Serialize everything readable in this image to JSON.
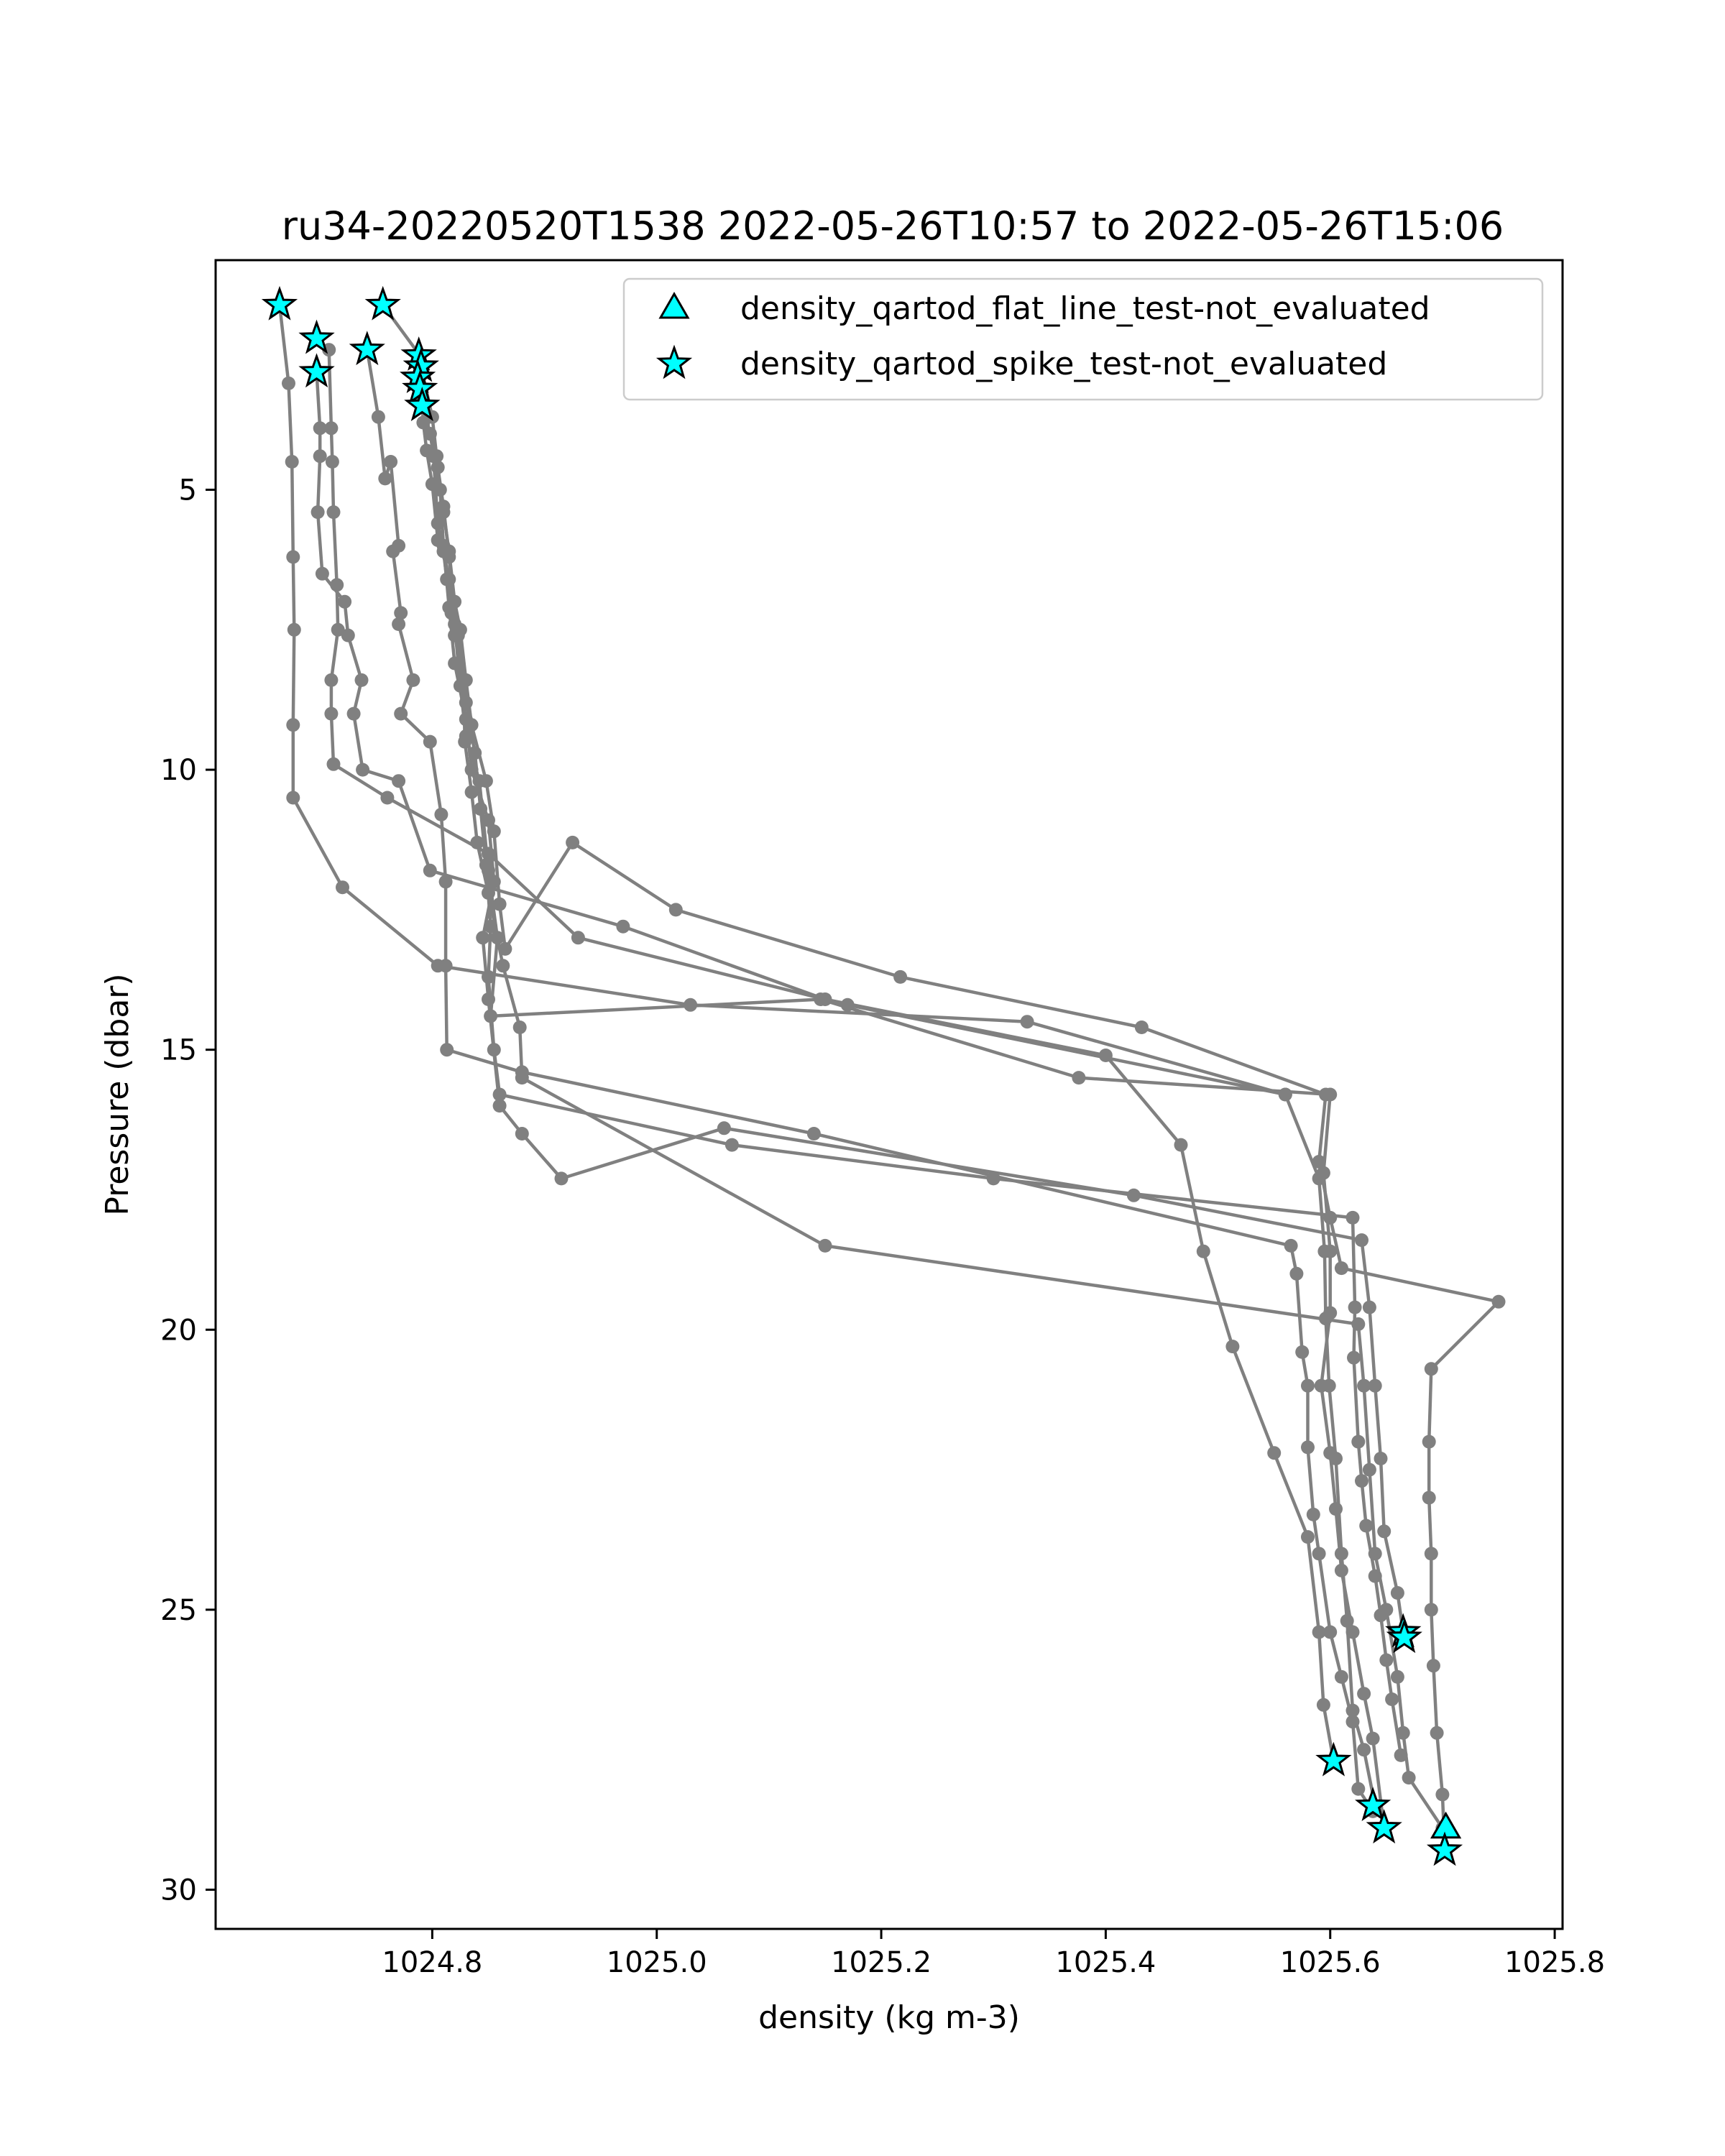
{
  "chart_data": {
    "type": "scatter",
    "title": "ru34-20220520T1538 2022-05-26T10:57 to 2022-05-26T15:06",
    "xlabel": "density (kg m-3)",
    "ylabel": "Pressure (dbar)",
    "xlim": [
      1024.607,
      1025.807
    ],
    "ylim": [
      30.7,
      0.9
    ],
    "y_inverted": true,
    "x_ticks": [
      1024.8,
      1025.0,
      1025.2,
      1025.4,
      1025.6,
      1025.8
    ],
    "x_tick_labels": [
      "1024.8",
      "1025.0",
      "1025.2",
      "1025.4",
      "1025.6",
      "1025.8"
    ],
    "y_ticks": [
      5,
      10,
      15,
      20,
      25,
      30
    ],
    "y_tick_labels": [
      "5",
      "10",
      "15",
      "20",
      "25",
      "30"
    ],
    "grid": false,
    "legend": {
      "placement": "top-right",
      "entries": [
        {
          "label": "density_qartod_flat_line_test-not_evaluated",
          "marker": "triangle",
          "color": "#00ffff"
        },
        {
          "label": "density_qartod_spike_test-not_evaluated",
          "marker": "star",
          "color": "#00ffff"
        }
      ]
    },
    "colors": {
      "profile_line": "#808080",
      "flag_marker_fill": "#00ffff",
      "flag_marker_edge": "#000000"
    },
    "profiles": [
      {
        "points": [
          [
            1024.664,
            1.7
          ],
          [
            1024.672,
            3.1
          ],
          [
            1024.675,
            4.5
          ],
          [
            1024.676,
            6.2
          ],
          [
            1024.677,
            7.5
          ],
          [
            1024.676,
            9.2
          ],
          [
            1024.676,
            10.5
          ],
          [
            1024.72,
            12.1
          ],
          [
            1024.805,
            13.5
          ],
          [
            1025.03,
            14.2
          ],
          [
            1025.33,
            14.5
          ],
          [
            1025.56,
            15.8
          ]
        ]
      },
      {
        "points": [
          [
            1024.697,
            2.3
          ],
          [
            1024.708,
            2.5
          ],
          [
            1024.71,
            3.9
          ],
          [
            1024.711,
            4.5
          ],
          [
            1024.712,
            5.4
          ],
          [
            1024.715,
            6.7
          ],
          [
            1024.716,
            7.5
          ],
          [
            1024.71,
            8.4
          ],
          [
            1024.71,
            9.0
          ],
          [
            1024.712,
            9.9
          ],
          [
            1024.76,
            10.5
          ],
          [
            1024.85,
            11.5
          ],
          [
            1024.93,
            13.0
          ],
          [
            1025.17,
            14.2
          ],
          [
            1025.56,
            15.8
          ],
          [
            1025.59,
            17.3
          ],
          [
            1025.595,
            18.6
          ],
          [
            1025.596,
            19.8
          ],
          [
            1025.599,
            21.0
          ],
          [
            1025.605,
            22.3
          ],
          [
            1025.61,
            24.0
          ],
          [
            1025.615,
            25.2
          ],
          [
            1025.62,
            26.8
          ],
          [
            1025.63,
            27.5
          ],
          [
            1025.64,
            28.5
          ]
        ]
      },
      {
        "points": [
          [
            1024.697,
            2.9
          ],
          [
            1024.7,
            3.9
          ],
          [
            1024.7,
            4.4
          ],
          [
            1024.698,
            5.4
          ],
          [
            1024.702,
            6.5
          ],
          [
            1024.722,
            7.0
          ],
          [
            1024.725,
            7.6
          ],
          [
            1024.737,
            8.4
          ],
          [
            1024.73,
            9.0
          ],
          [
            1024.738,
            10.0
          ],
          [
            1024.77,
            10.2
          ],
          [
            1024.798,
            11.8
          ],
          [
            1024.97,
            12.8
          ],
          [
            1025.15,
            14.1
          ],
          [
            1025.4,
            15.1
          ],
          [
            1025.467,
            16.7
          ],
          [
            1025.487,
            18.6
          ],
          [
            1025.513,
            20.3
          ],
          [
            1025.55,
            22.2
          ],
          [
            1025.58,
            23.7
          ],
          [
            1025.59,
            25.4
          ],
          [
            1025.594,
            26.7
          ],
          [
            1025.603,
            27.7
          ]
        ]
      },
      {
        "points": [
          [
            1024.742,
            2.5
          ],
          [
            1024.752,
            3.7
          ],
          [
            1024.758,
            4.8
          ],
          [
            1024.763,
            4.5
          ],
          [
            1024.77,
            6.0
          ],
          [
            1024.765,
            6.1
          ],
          [
            1024.772,
            7.2
          ],
          [
            1024.77,
            7.4
          ],
          [
            1024.783,
            8.4
          ],
          [
            1024.772,
            9.0
          ],
          [
            1024.798,
            9.5
          ],
          [
            1024.808,
            10.8
          ],
          [
            1024.812,
            12.0
          ],
          [
            1024.812,
            13.5
          ],
          [
            1024.813,
            15.0
          ],
          [
            1024.88,
            15.4
          ],
          [
            1025.14,
            16.5
          ],
          [
            1025.565,
            18.5
          ],
          [
            1025.57,
            19.0
          ],
          [
            1025.575,
            20.4
          ],
          [
            1025.58,
            21.0
          ],
          [
            1025.58,
            22.1
          ],
          [
            1025.585,
            23.3
          ],
          [
            1025.59,
            24.0
          ],
          [
            1025.6,
            25.4
          ],
          [
            1025.61,
            26.2
          ],
          [
            1025.62,
            27.0
          ],
          [
            1025.625,
            28.2
          ],
          [
            1025.638,
            28.6
          ]
        ]
      },
      {
        "points": [
          [
            1024.756,
            1.7
          ],
          [
            1024.789,
            2.6
          ],
          [
            1024.792,
            3.8
          ],
          [
            1024.795,
            4.3
          ],
          [
            1024.8,
            4.9
          ],
          [
            1024.805,
            5.9
          ],
          [
            1024.81,
            6.1
          ],
          [
            1024.813,
            6.6
          ],
          [
            1024.817,
            7.2
          ],
          [
            1024.82,
            7.6
          ],
          [
            1024.828,
            8.4
          ],
          [
            1024.829,
            9.5
          ],
          [
            1024.835,
            10.4
          ],
          [
            1024.84,
            11.3
          ],
          [
            1024.85,
            12.2
          ],
          [
            1024.863,
            13.5
          ],
          [
            1024.878,
            14.6
          ],
          [
            1024.88,
            15.5
          ],
          [
            1025.15,
            18.5
          ],
          [
            1025.625,
            19.9
          ],
          [
            1025.63,
            21.0
          ],
          [
            1025.635,
            22.5
          ],
          [
            1025.64,
            24.0
          ],
          [
            1025.65,
            25.0
          ],
          [
            1025.66,
            26.2
          ],
          [
            1025.665,
            27.2
          ],
          [
            1025.67,
            28.0
          ],
          [
            1025.7,
            28.9
          ]
        ]
      },
      {
        "points": [
          [
            1024.788,
            2.7
          ],
          [
            1024.79,
            3.3
          ],
          [
            1024.798,
            4.0
          ],
          [
            1024.804,
            4.4
          ],
          [
            1024.807,
            5.0
          ],
          [
            1024.81,
            6.0
          ],
          [
            1024.815,
            7.1
          ],
          [
            1024.82,
            8.1
          ],
          [
            1024.83,
            9.1
          ],
          [
            1024.835,
            10.0
          ],
          [
            1024.85,
            10.9
          ],
          [
            1024.855,
            12.0
          ],
          [
            1024.845,
            13.0
          ],
          [
            1024.85,
            14.1
          ],
          [
            1024.86,
            16.0
          ],
          [
            1024.88,
            16.5
          ],
          [
            1024.915,
            17.3
          ],
          [
            1025.06,
            16.4
          ],
          [
            1025.425,
            17.6
          ],
          [
            1025.628,
            18.4
          ],
          [
            1025.635,
            19.6
          ],
          [
            1025.64,
            21.0
          ],
          [
            1025.645,
            22.3
          ],
          [
            1025.648,
            23.6
          ],
          [
            1025.66,
            24.7
          ],
          [
            1025.665,
            25.4
          ]
        ]
      },
      {
        "points": [
          [
            1024.79,
            2.8
          ],
          [
            1024.8,
            3.7
          ],
          [
            1024.805,
            4.6
          ],
          [
            1024.81,
            5.3
          ],
          [
            1024.815,
            6.2
          ],
          [
            1024.82,
            7.4
          ],
          [
            1024.825,
            8.5
          ],
          [
            1024.83,
            9.4
          ],
          [
            1024.842,
            10.2
          ],
          [
            1024.85,
            11.8
          ],
          [
            1024.858,
            13.0
          ],
          [
            1024.852,
            14.4
          ],
          [
            1025.146,
            14.1
          ],
          [
            1025.376,
            15.5
          ],
          [
            1025.6,
            15.8
          ],
          [
            1025.594,
            17.2
          ],
          [
            1025.6,
            18.6
          ],
          [
            1025.6,
            19.7
          ],
          [
            1025.592,
            21.0
          ],
          [
            1025.6,
            22.2
          ],
          [
            1025.605,
            23.2
          ],
          [
            1025.61,
            24.3
          ],
          [
            1025.62,
            25.4
          ],
          [
            1025.63,
            26.5
          ],
          [
            1025.638,
            27.3
          ],
          [
            1025.648,
            28.9
          ]
        ]
      },
      {
        "points": [
          [
            1024.791,
            3.5
          ],
          [
            1024.798,
            4.0
          ],
          [
            1024.81,
            5.4
          ],
          [
            1024.815,
            6.1
          ],
          [
            1024.82,
            7.0
          ],
          [
            1024.825,
            7.5
          ],
          [
            1024.83,
            8.4
          ],
          [
            1024.835,
            9.2
          ],
          [
            1024.848,
            10.2
          ],
          [
            1024.855,
            11.1
          ],
          [
            1024.86,
            12.4
          ],
          [
            1024.865,
            13.2
          ],
          [
            1024.925,
            11.3
          ],
          [
            1025.017,
            12.5
          ],
          [
            1025.217,
            13.7
          ],
          [
            1025.432,
            14.6
          ],
          [
            1025.596,
            15.8
          ],
          [
            1025.59,
            17.0
          ],
          [
            1025.6,
            18.0
          ],
          [
            1025.61,
            18.9
          ],
          [
            1025.75,
            19.5
          ],
          [
            1025.69,
            20.7
          ],
          [
            1025.688,
            22.0
          ],
          [
            1025.688,
            23.0
          ],
          [
            1025.69,
            24.0
          ],
          [
            1025.69,
            25.0
          ],
          [
            1025.692,
            26.0
          ],
          [
            1025.695,
            27.2
          ],
          [
            1025.7,
            28.3
          ],
          [
            1025.702,
            29.3
          ]
        ]
      },
      {
        "points": [
          [
            1024.801,
            4.4
          ],
          [
            1024.805,
            5.6
          ],
          [
            1024.815,
            6.6
          ],
          [
            1024.823,
            7.6
          ],
          [
            1024.83,
            8.8
          ],
          [
            1024.838,
            9.7
          ],
          [
            1024.843,
            10.7
          ],
          [
            1024.848,
            11.7
          ],
          [
            1024.852,
            12.8
          ],
          [
            1024.85,
            13.7
          ],
          [
            1024.855,
            15.0
          ],
          [
            1024.86,
            15.8
          ],
          [
            1025.067,
            16.7
          ],
          [
            1025.3,
            17.3
          ],
          [
            1025.62,
            18.0
          ],
          [
            1025.622,
            19.6
          ],
          [
            1025.621,
            20.5
          ],
          [
            1025.625,
            22.0
          ],
          [
            1025.628,
            22.7
          ],
          [
            1025.632,
            23.5
          ],
          [
            1025.64,
            24.4
          ],
          [
            1025.645,
            25.1
          ],
          [
            1025.65,
            25.9
          ],
          [
            1025.655,
            26.6
          ],
          [
            1025.663,
            27.6
          ]
        ]
      }
    ],
    "series": [
      {
        "name": "density_qartod_flat_line_test-not_evaluated",
        "marker": "triangle",
        "x": [
          1025.703
        ],
        "y": [
          28.9
        ]
      },
      {
        "name": "density_qartod_spike_test-not_evaluated",
        "marker": "star",
        "x": [
          1024.664,
          1024.756,
          1024.697,
          1024.742,
          1024.697,
          1024.788,
          1024.79,
          1024.787,
          1024.789,
          1024.791,
          1025.665,
          1025.666,
          1025.603,
          1025.638,
          1025.648,
          1025.702
        ],
        "y": [
          1.7,
          1.7,
          2.3,
          2.5,
          2.9,
          2.6,
          2.8,
          3.0,
          3.2,
          3.5,
          25.4,
          25.5,
          27.7,
          28.5,
          28.9,
          29.3
        ]
      }
    ]
  }
}
